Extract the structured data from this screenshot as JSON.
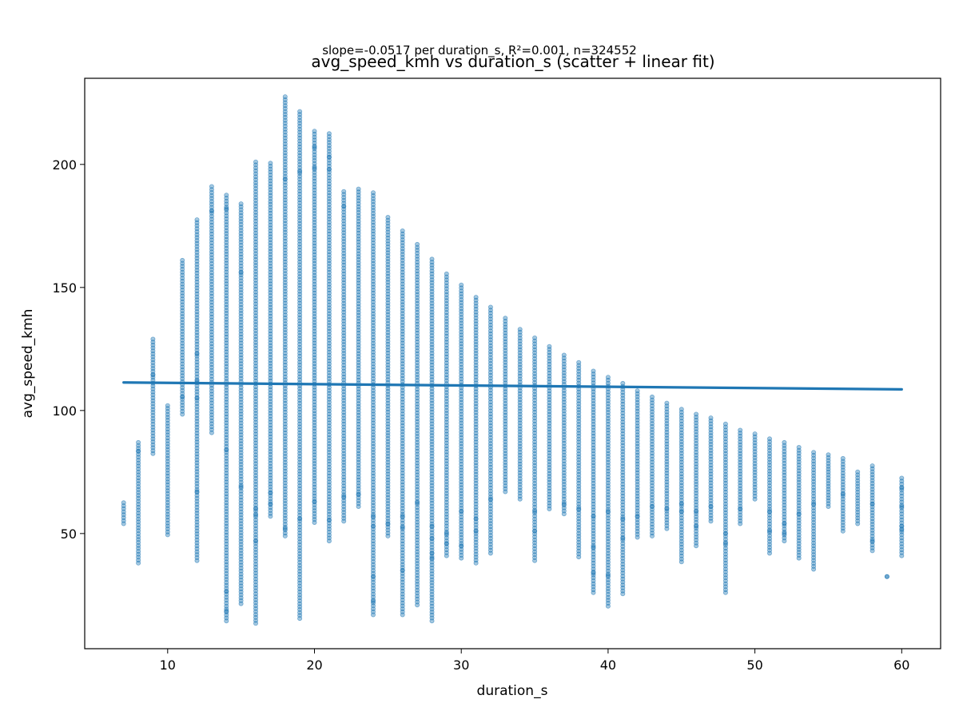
{
  "chart_data": {
    "type": "scatter",
    "title": "avg_speed_kmh vs duration_s (scatter + linear fit)",
    "subtitle": "slope=-0.0517 per duration_s, R²=0.001, n=324552",
    "xlabel": "duration_s",
    "ylabel": "avg_speed_kmh",
    "xlim": [
      4.35,
      62.65
    ],
    "ylim": [
      3.2,
      235
    ],
    "xticks": [
      10,
      20,
      30,
      40,
      50,
      60
    ],
    "yticks": [
      50,
      100,
      150,
      200
    ],
    "grid": false,
    "legend": "none",
    "colors": {
      "points": "#1f77b4",
      "fit_line": "#1f77b4"
    },
    "fit_line": {
      "x": [
        7,
        60
      ],
      "y": [
        111.4,
        108.6
      ]
    },
    "columns": [
      {
        "x": 7,
        "min": 54,
        "max": 62.5,
        "outliers": []
      },
      {
        "x": 8,
        "min": 38,
        "max": 87,
        "outliers": [
          83.5
        ]
      },
      {
        "x": 9,
        "min": 82.5,
        "max": 129,
        "outliers": [
          114.5
        ]
      },
      {
        "x": 10,
        "min": 49.5,
        "max": 102,
        "outliers": []
      },
      {
        "x": 11,
        "min": 98.5,
        "max": 161,
        "outliers": [
          105.5
        ]
      },
      {
        "x": 12,
        "min": 39,
        "max": 177.5,
        "outliers": [
          67,
          105,
          112,
          123
        ]
      },
      {
        "x": 13,
        "min": 91,
        "max": 191,
        "outliers": [
          181
        ]
      },
      {
        "x": 14,
        "min": 14.5,
        "max": 187.5,
        "outliers": [
          18.5,
          26.5,
          84,
          182
        ]
      },
      {
        "x": 15,
        "min": 21.5,
        "max": 184,
        "outliers": [
          69,
          156
        ]
      },
      {
        "x": 16,
        "min": 13.5,
        "max": 201,
        "outliers": [
          47,
          57.5,
          60
        ]
      },
      {
        "x": 17,
        "min": 57,
        "max": 200.5,
        "outliers": [
          62,
          66.5
        ]
      },
      {
        "x": 18,
        "min": 49,
        "max": 227.5,
        "outliers": [
          52,
          194
        ]
      },
      {
        "x": 19,
        "min": 15.5,
        "max": 221.5,
        "outliers": [
          56,
          197
        ]
      },
      {
        "x": 20,
        "min": 54.5,
        "max": 213.5,
        "outliers": [
          63,
          207,
          198.5
        ]
      },
      {
        "x": 21,
        "min": 47,
        "max": 212.5,
        "outliers": [
          55.5,
          203,
          198
        ]
      },
      {
        "x": 22,
        "min": 55,
        "max": 189,
        "outliers": [
          65,
          183
        ]
      },
      {
        "x": 23,
        "min": 61,
        "max": 190,
        "outliers": [
          66
        ]
      },
      {
        "x": 24,
        "min": 17,
        "max": 188.5,
        "outliers": [
          22.5,
          32.5,
          53,
          57
        ]
      },
      {
        "x": 25,
        "min": 49,
        "max": 178.5,
        "outliers": [
          54
        ]
      },
      {
        "x": 26,
        "min": 17,
        "max": 173,
        "outliers": [
          35,
          52.5,
          57
        ]
      },
      {
        "x": 27,
        "min": 21,
        "max": 167.5,
        "outliers": [
          62.5
        ]
      },
      {
        "x": 28,
        "min": 14.5,
        "max": 161.5,
        "outliers": [
          40,
          42,
          48,
          53
        ]
      },
      {
        "x": 29,
        "min": 41,
        "max": 155.5,
        "outliers": [
          46,
          50
        ]
      },
      {
        "x": 30,
        "min": 40,
        "max": 151,
        "outliers": [
          45,
          59
        ]
      },
      {
        "x": 31,
        "min": 38,
        "max": 146,
        "outliers": [
          51,
          56
        ]
      },
      {
        "x": 32,
        "min": 42,
        "max": 142,
        "outliers": [
          64
        ]
      },
      {
        "x": 33,
        "min": 67,
        "max": 137.5,
        "outliers": []
      },
      {
        "x": 34,
        "min": 64,
        "max": 133,
        "outliers": []
      },
      {
        "x": 35,
        "min": 39,
        "max": 129.5,
        "outliers": [
          51,
          59
        ]
      },
      {
        "x": 36,
        "min": 60,
        "max": 126,
        "outliers": []
      },
      {
        "x": 37,
        "min": 58,
        "max": 122.5,
        "outliers": [
          62
        ]
      },
      {
        "x": 38,
        "min": 40.5,
        "max": 119.5,
        "outliers": [
          60
        ]
      },
      {
        "x": 39,
        "min": 26,
        "max": 116,
        "outliers": [
          34,
          44.5,
          57
        ]
      },
      {
        "x": 40,
        "min": 20.5,
        "max": 113.5,
        "outliers": [
          33,
          59
        ]
      },
      {
        "x": 41,
        "min": 25.5,
        "max": 111,
        "outliers": [
          48,
          56
        ]
      },
      {
        "x": 42,
        "min": 48.5,
        "max": 108,
        "outliers": [
          57
        ]
      },
      {
        "x": 43,
        "min": 49,
        "max": 105.5,
        "outliers": [
          61
        ]
      },
      {
        "x": 44,
        "min": 52,
        "max": 103,
        "outliers": [
          60
        ]
      },
      {
        "x": 45,
        "min": 38.5,
        "max": 100.5,
        "outliers": [
          59,
          62
        ]
      },
      {
        "x": 46,
        "min": 45,
        "max": 98.5,
        "outliers": [
          53,
          59
        ]
      },
      {
        "x": 47,
        "min": 55,
        "max": 97,
        "outliers": [
          61
        ]
      },
      {
        "x": 48,
        "min": 26,
        "max": 94.5,
        "outliers": [
          46,
          50
        ]
      },
      {
        "x": 49,
        "min": 54,
        "max": 92,
        "outliers": [
          60
        ]
      },
      {
        "x": 50,
        "min": 64,
        "max": 90.5,
        "outliers": []
      },
      {
        "x": 51,
        "min": 42,
        "max": 88.5,
        "outliers": [
          51,
          59
        ]
      },
      {
        "x": 52,
        "min": 47,
        "max": 87,
        "outliers": [
          50,
          54
        ]
      },
      {
        "x": 53,
        "min": 40,
        "max": 85,
        "outliers": [
          58
        ]
      },
      {
        "x": 54,
        "min": 35.5,
        "max": 83,
        "outliers": [
          62
        ]
      },
      {
        "x": 55,
        "min": 61,
        "max": 82,
        "outliers": []
      },
      {
        "x": 56,
        "min": 51,
        "max": 80.5,
        "outliers": [
          66
        ]
      },
      {
        "x": 57,
        "min": 54,
        "max": 75,
        "outliers": []
      },
      {
        "x": 58,
        "min": 43,
        "max": 77.5,
        "outliers": [
          47,
          62
        ]
      },
      {
        "x": 59,
        "min": 32.5,
        "max": 32.5,
        "outliers": []
      },
      {
        "x": 60,
        "min": 41,
        "max": 72.5,
        "outliers": [
          51.5,
          53,
          61,
          68.5
        ]
      }
    ]
  }
}
